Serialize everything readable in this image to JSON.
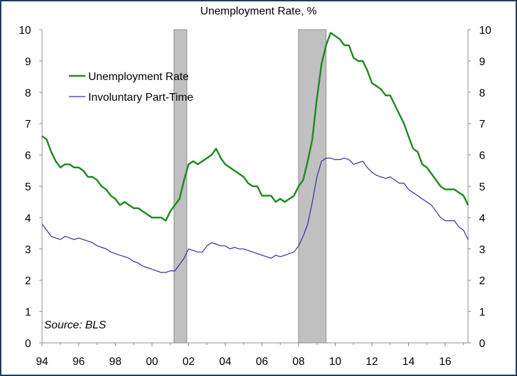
{
  "chart_data": {
    "type": "line",
    "title": "Unemployment Rate, %",
    "source": "Source: BLS",
    "x_range": [
      1994,
      2017.25
    ],
    "ylim": [
      0,
      10
    ],
    "y_ticks": [
      "0",
      "1",
      "2",
      "3",
      "4",
      "5",
      "6",
      "7",
      "8",
      "9",
      "10"
    ],
    "x_ticks": [
      {
        "label": "94",
        "x": 1994
      },
      {
        "label": "96",
        "x": 1996
      },
      {
        "label": "98",
        "x": 1998
      },
      {
        "label": "00",
        "x": 2000
      },
      {
        "label": "02",
        "x": 2002
      },
      {
        "label": "04",
        "x": 2004
      },
      {
        "label": "06",
        "x": 2006
      },
      {
        "label": "08",
        "x": 2008
      },
      {
        "label": "10",
        "x": 2010
      },
      {
        "label": "12",
        "x": 2012
      },
      {
        "label": "14",
        "x": 2014
      },
      {
        "label": "16",
        "x": 2016
      }
    ],
    "recessions": [
      [
        2001.2,
        2001.9
      ],
      [
        2008.0,
        2009.5
      ]
    ],
    "legend_position": "top-left",
    "grid": false,
    "series": [
      {
        "name": "Unemployment Rate",
        "color": "#1f8a1f",
        "points": [
          [
            1994.0,
            6.6
          ],
          [
            1994.25,
            6.5
          ],
          [
            1994.5,
            6.1
          ],
          [
            1994.75,
            5.8
          ],
          [
            1995.0,
            5.6
          ],
          [
            1995.25,
            5.7
          ],
          [
            1995.5,
            5.7
          ],
          [
            1995.75,
            5.6
          ],
          [
            1996.0,
            5.6
          ],
          [
            1996.25,
            5.5
          ],
          [
            1996.5,
            5.3
          ],
          [
            1996.75,
            5.3
          ],
          [
            1997.0,
            5.2
          ],
          [
            1997.25,
            5.0
          ],
          [
            1997.5,
            4.9
          ],
          [
            1997.75,
            4.7
          ],
          [
            1998.0,
            4.6
          ],
          [
            1998.25,
            4.4
          ],
          [
            1998.5,
            4.5
          ],
          [
            1998.75,
            4.4
          ],
          [
            1999.0,
            4.3
          ],
          [
            1999.25,
            4.3
          ],
          [
            1999.5,
            4.2
          ],
          [
            1999.75,
            4.1
          ],
          [
            2000.0,
            4.0
          ],
          [
            2000.25,
            4.0
          ],
          [
            2000.5,
            4.0
          ],
          [
            2000.75,
            3.9
          ],
          [
            2001.0,
            4.2
          ],
          [
            2001.25,
            4.4
          ],
          [
            2001.5,
            4.6
          ],
          [
            2001.75,
            5.2
          ],
          [
            2002.0,
            5.7
          ],
          [
            2002.25,
            5.8
          ],
          [
            2002.5,
            5.7
          ],
          [
            2002.75,
            5.8
          ],
          [
            2003.0,
            5.9
          ],
          [
            2003.25,
            6.0
          ],
          [
            2003.5,
            6.2
          ],
          [
            2003.75,
            5.9
          ],
          [
            2004.0,
            5.7
          ],
          [
            2004.25,
            5.6
          ],
          [
            2004.5,
            5.5
          ],
          [
            2004.75,
            5.4
          ],
          [
            2005.0,
            5.3
          ],
          [
            2005.25,
            5.1
          ],
          [
            2005.5,
            5.0
          ],
          [
            2005.75,
            5.0
          ],
          [
            2006.0,
            4.7
          ],
          [
            2006.25,
            4.7
          ],
          [
            2006.5,
            4.7
          ],
          [
            2006.75,
            4.5
          ],
          [
            2007.0,
            4.6
          ],
          [
            2007.25,
            4.5
          ],
          [
            2007.5,
            4.6
          ],
          [
            2007.75,
            4.7
          ],
          [
            2008.0,
            5.0
          ],
          [
            2008.25,
            5.2
          ],
          [
            2008.5,
            5.8
          ],
          [
            2008.75,
            6.5
          ],
          [
            2009.0,
            7.8
          ],
          [
            2009.25,
            8.9
          ],
          [
            2009.5,
            9.5
          ],
          [
            2009.75,
            9.9
          ],
          [
            2010.0,
            9.8
          ],
          [
            2010.25,
            9.7
          ],
          [
            2010.5,
            9.5
          ],
          [
            2010.75,
            9.5
          ],
          [
            2011.0,
            9.1
          ],
          [
            2011.25,
            9.0
          ],
          [
            2011.5,
            9.0
          ],
          [
            2011.75,
            8.7
          ],
          [
            2012.0,
            8.3
          ],
          [
            2012.25,
            8.2
          ],
          [
            2012.5,
            8.1
          ],
          [
            2012.75,
            7.9
          ],
          [
            2013.0,
            7.9
          ],
          [
            2013.25,
            7.6
          ],
          [
            2013.5,
            7.3
          ],
          [
            2013.75,
            7.0
          ],
          [
            2014.0,
            6.6
          ],
          [
            2014.25,
            6.2
          ],
          [
            2014.5,
            6.1
          ],
          [
            2014.75,
            5.7
          ],
          [
            2015.0,
            5.6
          ],
          [
            2015.25,
            5.4
          ],
          [
            2015.5,
            5.2
          ],
          [
            2015.75,
            5.0
          ],
          [
            2016.0,
            4.9
          ],
          [
            2016.25,
            4.9
          ],
          [
            2016.5,
            4.9
          ],
          [
            2016.75,
            4.8
          ],
          [
            2017.0,
            4.7
          ],
          [
            2017.25,
            4.4
          ]
        ]
      },
      {
        "name": "Involuntary Part-Time",
        "color": "#2b2f9a",
        "points": [
          [
            1994.0,
            3.8
          ],
          [
            1994.25,
            3.6
          ],
          [
            1994.5,
            3.4
          ],
          [
            1994.75,
            3.35
          ],
          [
            1995.0,
            3.3
          ],
          [
            1995.25,
            3.4
          ],
          [
            1995.5,
            3.35
          ],
          [
            1995.75,
            3.3
          ],
          [
            1996.0,
            3.35
          ],
          [
            1996.25,
            3.3
          ],
          [
            1996.5,
            3.25
          ],
          [
            1996.75,
            3.2
          ],
          [
            1997.0,
            3.1
          ],
          [
            1997.25,
            3.05
          ],
          [
            1997.5,
            3.0
          ],
          [
            1997.75,
            2.9
          ],
          [
            1998.0,
            2.85
          ],
          [
            1998.25,
            2.8
          ],
          [
            1998.5,
            2.75
          ],
          [
            1998.75,
            2.7
          ],
          [
            1999.0,
            2.6
          ],
          [
            1999.25,
            2.55
          ],
          [
            1999.5,
            2.45
          ],
          [
            1999.75,
            2.4
          ],
          [
            2000.0,
            2.35
          ],
          [
            2000.25,
            2.3
          ],
          [
            2000.5,
            2.25
          ],
          [
            2000.75,
            2.25
          ],
          [
            2001.0,
            2.3
          ],
          [
            2001.25,
            2.3
          ],
          [
            2001.5,
            2.5
          ],
          [
            2001.75,
            2.7
          ],
          [
            2002.0,
            3.0
          ],
          [
            2002.25,
            2.95
          ],
          [
            2002.5,
            2.9
          ],
          [
            2002.75,
            2.9
          ],
          [
            2003.0,
            3.1
          ],
          [
            2003.25,
            3.2
          ],
          [
            2003.5,
            3.15
          ],
          [
            2003.75,
            3.1
          ],
          [
            2004.0,
            3.1
          ],
          [
            2004.25,
            3.0
          ],
          [
            2004.5,
            3.05
          ],
          [
            2004.75,
            3.0
          ],
          [
            2005.0,
            3.0
          ],
          [
            2005.25,
            2.95
          ],
          [
            2005.5,
            2.9
          ],
          [
            2005.75,
            2.85
          ],
          [
            2006.0,
            2.8
          ],
          [
            2006.25,
            2.75
          ],
          [
            2006.5,
            2.7
          ],
          [
            2006.75,
            2.8
          ],
          [
            2007.0,
            2.75
          ],
          [
            2007.25,
            2.8
          ],
          [
            2007.5,
            2.85
          ],
          [
            2007.75,
            2.9
          ],
          [
            2008.0,
            3.1
          ],
          [
            2008.25,
            3.4
          ],
          [
            2008.5,
            3.8
          ],
          [
            2008.75,
            4.5
          ],
          [
            2009.0,
            5.3
          ],
          [
            2009.25,
            5.8
          ],
          [
            2009.5,
            5.9
          ],
          [
            2009.75,
            5.9
          ],
          [
            2010.0,
            5.85
          ],
          [
            2010.25,
            5.85
          ],
          [
            2010.5,
            5.9
          ],
          [
            2010.75,
            5.85
          ],
          [
            2011.0,
            5.7
          ],
          [
            2011.25,
            5.75
          ],
          [
            2011.5,
            5.8
          ],
          [
            2011.75,
            5.6
          ],
          [
            2012.0,
            5.45
          ],
          [
            2012.25,
            5.35
          ],
          [
            2012.5,
            5.3
          ],
          [
            2012.75,
            5.25
          ],
          [
            2013.0,
            5.3
          ],
          [
            2013.25,
            5.2
          ],
          [
            2013.5,
            5.1
          ],
          [
            2013.75,
            5.1
          ],
          [
            2014.0,
            4.9
          ],
          [
            2014.25,
            4.8
          ],
          [
            2014.5,
            4.7
          ],
          [
            2014.75,
            4.6
          ],
          [
            2015.0,
            4.5
          ],
          [
            2015.25,
            4.4
          ],
          [
            2015.5,
            4.2
          ],
          [
            2015.75,
            4.0
          ],
          [
            2016.0,
            3.9
          ],
          [
            2016.25,
            3.9
          ],
          [
            2016.5,
            3.9
          ],
          [
            2016.75,
            3.7
          ],
          [
            2017.0,
            3.6
          ],
          [
            2017.25,
            3.3
          ]
        ]
      }
    ]
  }
}
